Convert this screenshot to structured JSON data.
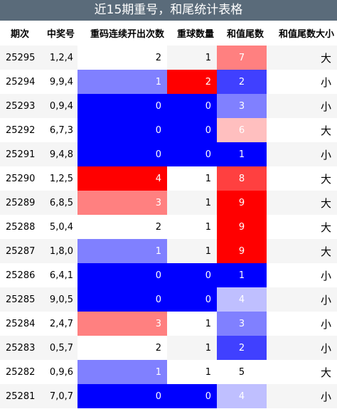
{
  "title": "近15期重号，和尾统计表格",
  "headers": [
    "期次",
    "中奖号",
    "重码连续开出次数",
    "重球数量",
    "和值尾数",
    "和值尾数大小"
  ],
  "colors": {
    "title_bg": "#5a6b7a"
  },
  "rows": [
    {
      "issue": "25295",
      "numbers": "1,2,4",
      "repeat_streak": "2",
      "repeat_count": "1",
      "sum_tail": "7",
      "size": "大"
    },
    {
      "issue": "25294",
      "numbers": "9,9,4",
      "repeat_streak": "1",
      "repeat_count": "2",
      "sum_tail": "2",
      "size": "小"
    },
    {
      "issue": "25293",
      "numbers": "0,9,4",
      "repeat_streak": "0",
      "repeat_count": "0",
      "sum_tail": "3",
      "size": "小"
    },
    {
      "issue": "25292",
      "numbers": "6,7,3",
      "repeat_streak": "0",
      "repeat_count": "0",
      "sum_tail": "6",
      "size": "大"
    },
    {
      "issue": "25291",
      "numbers": "9,4,8",
      "repeat_streak": "0",
      "repeat_count": "0",
      "sum_tail": "1",
      "size": "小"
    },
    {
      "issue": "25290",
      "numbers": "1,2,5",
      "repeat_streak": "4",
      "repeat_count": "1",
      "sum_tail": "8",
      "size": "大"
    },
    {
      "issue": "25289",
      "numbers": "6,8,5",
      "repeat_streak": "3",
      "repeat_count": "1",
      "sum_tail": "9",
      "size": "大"
    },
    {
      "issue": "25288",
      "numbers": "5,0,4",
      "repeat_streak": "2",
      "repeat_count": "1",
      "sum_tail": "9",
      "size": "大"
    },
    {
      "issue": "25287",
      "numbers": "1,8,0",
      "repeat_streak": "1",
      "repeat_count": "1",
      "sum_tail": "9",
      "size": "大"
    },
    {
      "issue": "25286",
      "numbers": "6,4,1",
      "repeat_streak": "0",
      "repeat_count": "0",
      "sum_tail": "1",
      "size": "小"
    },
    {
      "issue": "25285",
      "numbers": "9,0,5",
      "repeat_streak": "0",
      "repeat_count": "0",
      "sum_tail": "4",
      "size": "小"
    },
    {
      "issue": "25284",
      "numbers": "2,4,7",
      "repeat_streak": "3",
      "repeat_count": "1",
      "sum_tail": "3",
      "size": "小"
    },
    {
      "issue": "25283",
      "numbers": "0,5,7",
      "repeat_streak": "2",
      "repeat_count": "1",
      "sum_tail": "2",
      "size": "小"
    },
    {
      "issue": "25282",
      "numbers": "0,9,6",
      "repeat_streak": "1",
      "repeat_count": "1",
      "sum_tail": "5",
      "size": "大"
    },
    {
      "issue": "25281",
      "numbers": "7,0,7",
      "repeat_streak": "0",
      "repeat_count": "0",
      "sum_tail": "4",
      "size": "小"
    }
  ]
}
